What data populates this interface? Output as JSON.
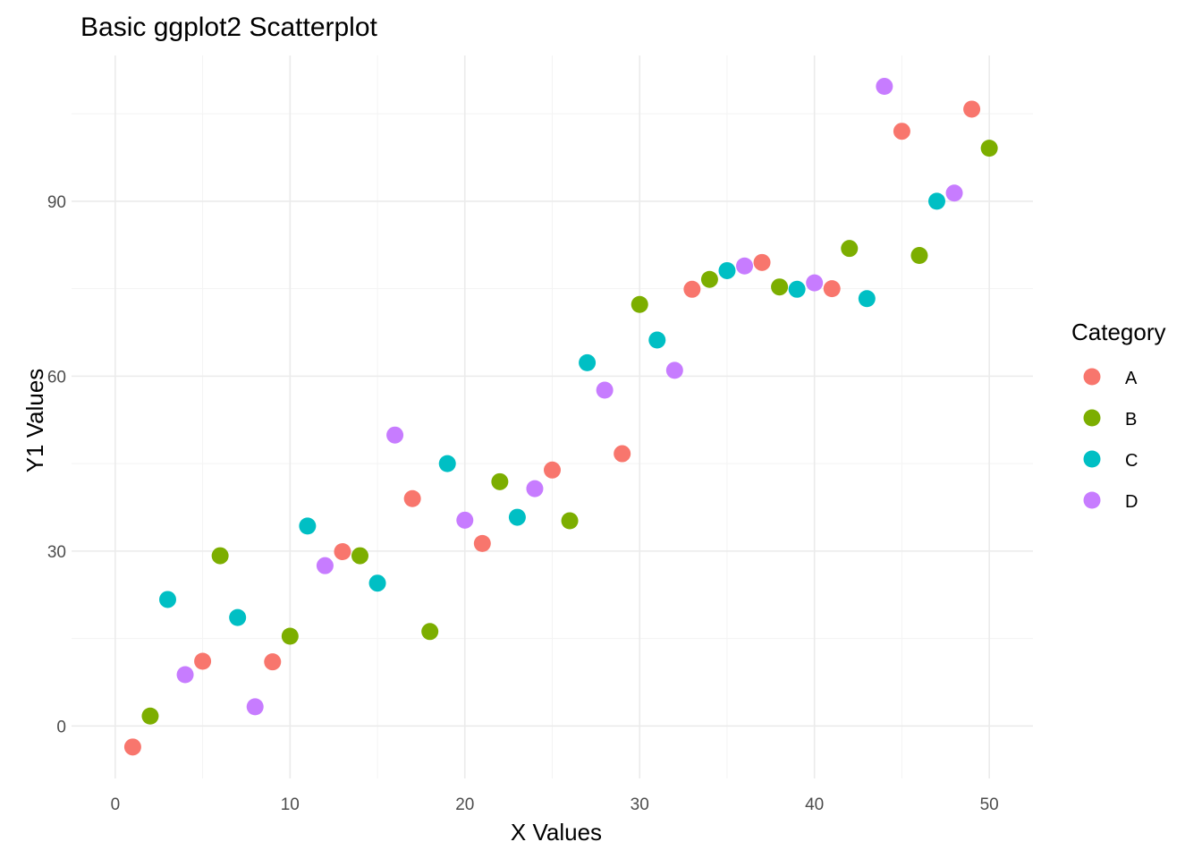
{
  "chart_data": {
    "type": "scatter",
    "title": "Basic ggplot2 Scatterplot",
    "xlabel": "X Values",
    "ylabel": "Y1 Values",
    "xlim": [
      -2.5,
      52.5
    ],
    "ylim": [
      -9,
      115
    ],
    "x_ticks": [
      0,
      10,
      20,
      30,
      40,
      50
    ],
    "y_ticks": [
      0,
      30,
      60,
      90
    ],
    "grid": true,
    "legend": {
      "title": "Category",
      "position": "right"
    },
    "series": [
      {
        "name": "A",
        "color": "#F8766D",
        "points": [
          [
            1,
            -3.6
          ],
          [
            5,
            11.1
          ],
          [
            9,
            11.0
          ],
          [
            13,
            29.9
          ],
          [
            17,
            39.0
          ],
          [
            21,
            31.3
          ],
          [
            25,
            43.9
          ],
          [
            29,
            46.7
          ],
          [
            33,
            74.9
          ],
          [
            37,
            79.5
          ],
          [
            41,
            75.0
          ],
          [
            45,
            102.0
          ],
          [
            49,
            105.8
          ]
        ]
      },
      {
        "name": "B",
        "color": "#7CAE00",
        "points": [
          [
            2,
            1.7
          ],
          [
            6,
            29.2
          ],
          [
            10,
            15.4
          ],
          [
            14,
            29.2
          ],
          [
            18,
            16.2
          ],
          [
            22,
            41.9
          ],
          [
            26,
            35.2
          ],
          [
            30,
            72.3
          ],
          [
            34,
            76.6
          ],
          [
            38,
            75.3
          ],
          [
            42,
            81.9
          ],
          [
            46,
            80.7
          ],
          [
            50,
            99.1
          ]
        ]
      },
      {
        "name": "C",
        "color": "#00BFC4",
        "points": [
          [
            3,
            21.7
          ],
          [
            7,
            18.6
          ],
          [
            11,
            34.3
          ],
          [
            15,
            24.5
          ],
          [
            19,
            45.0
          ],
          [
            23,
            35.8
          ],
          [
            27,
            62.3
          ],
          [
            31,
            66.2
          ],
          [
            35,
            78.1
          ],
          [
            39,
            74.9
          ],
          [
            43,
            73.3
          ],
          [
            47,
            90.0
          ]
        ]
      },
      {
        "name": "D",
        "color": "#C77CFF",
        "points": [
          [
            4,
            8.8
          ],
          [
            8,
            3.3
          ],
          [
            12,
            27.5
          ],
          [
            16,
            49.9
          ],
          [
            20,
            35.3
          ],
          [
            24,
            40.7
          ],
          [
            28,
            57.6
          ],
          [
            32,
            61.0
          ],
          [
            36,
            78.9
          ],
          [
            40,
            76.0
          ],
          [
            44,
            109.7
          ],
          [
            48,
            91.4
          ]
        ]
      }
    ]
  }
}
